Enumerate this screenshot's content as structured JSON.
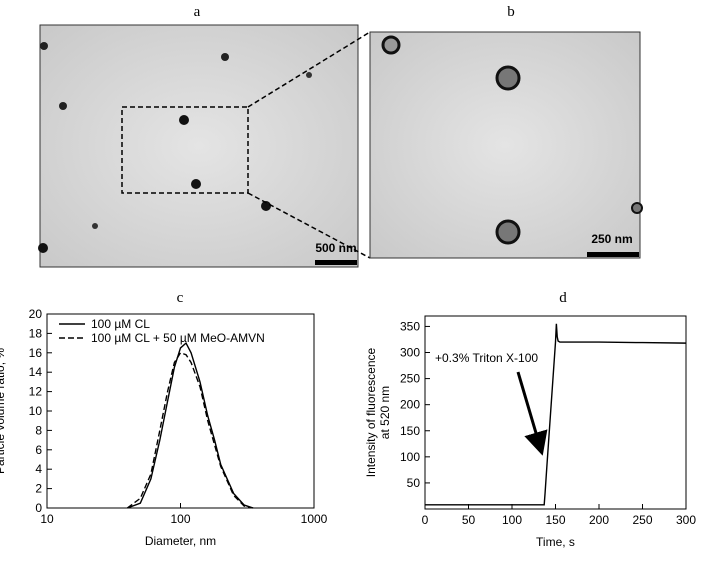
{
  "panels": [
    "a",
    "b",
    "c",
    "d"
  ],
  "images": {
    "scale_a": "500 nm",
    "scale_b": "250 nm"
  },
  "chart_data": [
    {
      "type": "line",
      "xlabel": "Diameter, nm",
      "ylabel": "Particle volume ratio, %",
      "log_x": true,
      "xlim": [
        10,
        1000
      ],
      "xticks": [
        10,
        100,
        1000
      ],
      "ylim": [
        0,
        20
      ],
      "yticks": [
        0,
        2,
        4,
        6,
        8,
        10,
        12,
        14,
        16,
        18,
        20
      ],
      "legend": "upper left",
      "x": [
        40,
        50,
        60,
        70,
        80,
        90,
        100,
        110,
        120,
        140,
        160,
        180,
        200,
        250,
        300,
        350
      ],
      "series": [
        {
          "name": "100 µM CL",
          "color": "#000000",
          "linestyle": "solid",
          "values": [
            0,
            0.5,
            3,
            7,
            11,
            14.5,
            16.5,
            17,
            16,
            13,
            9.5,
            7,
            4.5,
            1.5,
            0.3,
            0
          ]
        },
        {
          "name": "100 µM CL + 50 µM MeO-AMVN",
          "color": "#000000",
          "linestyle": "dashed",
          "values": [
            0,
            1,
            3.5,
            8,
            12,
            15,
            16,
            15.8,
            15,
            12.5,
            9,
            6.5,
            4.3,
            1.3,
            0.2,
            0
          ]
        }
      ]
    },
    {
      "type": "line",
      "xlabel": "Time, s",
      "ylabel": [
        "Intensity of fluorescence",
        "at 520 nm"
      ],
      "xlim": [
        0,
        300
      ],
      "xticks": [
        0,
        50,
        100,
        150,
        200,
        250,
        300
      ],
      "ylim": [
        0,
        370
      ],
      "yticks": [
        50,
        100,
        150,
        200,
        250,
        300,
        350
      ],
      "annotation": "+0.3% Triton X-100",
      "x": [
        0,
        137,
        138,
        140,
        145,
        150,
        151,
        152,
        153,
        155,
        200,
        250,
        300
      ],
      "series": [
        {
          "color": "#000000",
          "linestyle": "solid",
          "values": [
            8,
            8,
            30,
            80,
            200,
            320,
            355,
            330,
            322,
            320,
            320,
            319,
            318
          ]
        }
      ]
    }
  ]
}
